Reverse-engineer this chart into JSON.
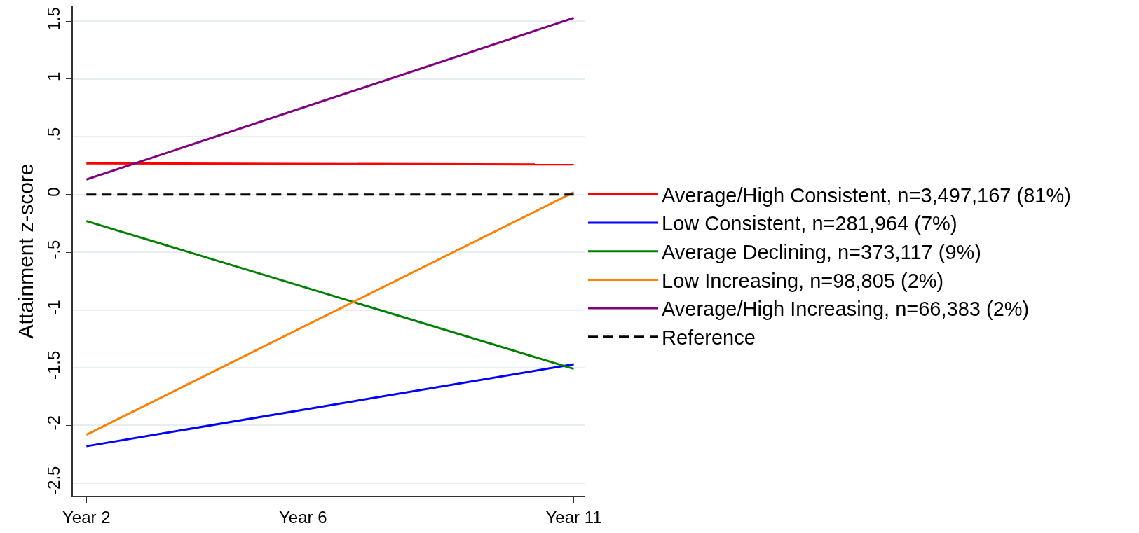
{
  "chart_data": {
    "type": "line",
    "ylabel": "Attainment z-score",
    "categories": [
      "Year 2",
      null,
      null,
      null,
      "Year 6",
      null,
      null,
      null,
      null,
      "Year 11"
    ],
    "ylim": [
      -2.61,
      1.63
    ],
    "yticks": [
      {
        "value": -2.5,
        "label": "-2.5"
      },
      {
        "value": -2,
        "label": "-2"
      },
      {
        "value": -1.5,
        "label": "-1.5"
      },
      {
        "value": -1,
        "label": "-1"
      },
      {
        "value": -0.5,
        "label": "-.5"
      },
      {
        "value": 0,
        "label": "0"
      },
      {
        "value": 0.5,
        "label": ".5"
      },
      {
        "value": 1,
        "label": "1"
      },
      {
        "value": 1.5,
        "label": "1.5"
      }
    ],
    "grid": "y",
    "legend": "right",
    "marker": "none",
    "series": [
      {
        "name": "Average/High Consistent, n=3,497,167 (81%)",
        "color": "#ff0000",
        "x": [
          "Year 2",
          "Year 11"
        ],
        "values": [
          0.27,
          0.26
        ]
      },
      {
        "name": "Low Consistent, n=281,964 (7%)",
        "color": "#0000ff",
        "x": [
          "Year 2",
          "Year 11"
        ],
        "values": [
          -2.18,
          -1.47
        ]
      },
      {
        "name": "Average Declining, n=373,117 (9%)",
        "color": "#008000",
        "x": [
          "Year 2",
          "Year 11"
        ],
        "values": [
          -0.23,
          -1.51
        ]
      },
      {
        "name": "Low Increasing, n=98,805 (2%)",
        "color": "#ff7f00",
        "x": [
          "Year 2",
          "Year 11"
        ],
        "values": [
          -2.08,
          0.02
        ]
      },
      {
        "name": "Average/High Increasing, n=66,383 (2%)",
        "color": "#800080",
        "x": [
          "Year 2",
          "Year 11"
        ],
        "values": [
          0.13,
          1.53
        ]
      },
      {
        "name": "Reference",
        "color": "#000000",
        "line_style": "dashed",
        "x": [
          "Year 2",
          "Year 11"
        ],
        "values": [
          0,
          0
        ]
      }
    ]
  }
}
